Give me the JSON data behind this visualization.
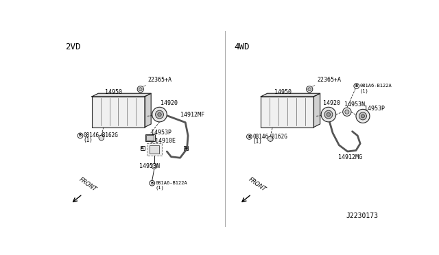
{
  "bg_color": "#ffffff",
  "fig_width": 6.4,
  "fig_height": 3.72,
  "dpi": 100,
  "title_2wd": "2VD",
  "title_4wd": "4WD",
  "doc_number": "J2230173",
  "lc": "#222222",
  "fc_light": "#e8e8e8",
  "fc_mid": "#cccccc",
  "lw": 0.7
}
